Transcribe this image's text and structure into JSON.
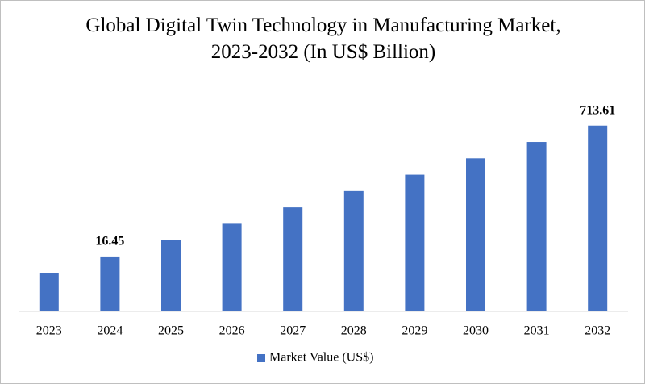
{
  "chart_data": {
    "type": "bar",
    "title": "Global Digital Twin Technology in Manufacturing Market, 2023-2032 (In US$ Billion)",
    "categories": [
      "2023",
      "2024",
      "2025",
      "2026",
      "2027",
      "2028",
      "2029",
      "2030",
      "2031",
      "2032"
    ],
    "series": [
      {
        "name": "Market Value (US$)",
        "color": "#4472c4",
        "values": [
          10.27,
          16.45,
          26.35,
          42.2,
          67.6,
          108.3,
          173.5,
          277.9,
          445.2,
          713.61
        ],
        "data_labels": [
          false,
          true,
          false,
          false,
          false,
          false,
          false,
          false,
          false,
          true
        ]
      }
    ],
    "ylim": [
      3.38,
      1600
    ],
    "log_scale": true,
    "grid": false,
    "legend": "bottom"
  }
}
